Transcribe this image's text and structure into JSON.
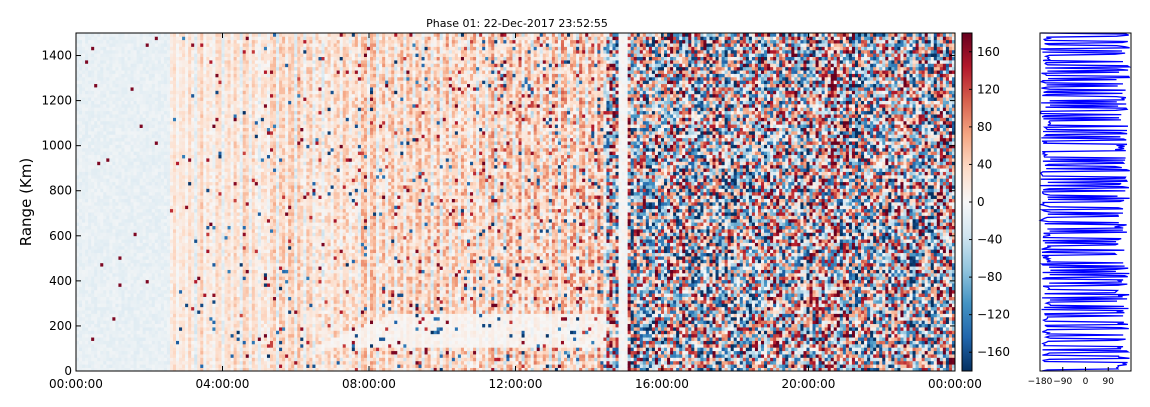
{
  "chart_data": [
    {
      "type": "heatmap",
      "title": "Phase 01: 22-Dec-2017 23:52:55",
      "xlabel": "",
      "ylabel": "Range (Km)",
      "x_tick_labels": [
        "00:00:00",
        "04:00:00",
        "08:00:00",
        "12:00:00",
        "16:00:00",
        "20:00:00",
        "00:00:00"
      ],
      "xlim_hours": [
        0,
        24
      ],
      "y_tick_labels": [
        "0",
        "200",
        "400",
        "600",
        "800",
        "1000",
        "1200",
        "1400"
      ],
      "ylim": [
        0,
        1500
      ],
      "colorbar": {
        "tick_labels": [
          "160",
          "120",
          "80",
          "40",
          "0",
          "−40",
          "−80",
          "−120",
          "−160"
        ],
        "range": [
          -180,
          180
        ],
        "colormap": "RdBu_r",
        "colors": [
          "#053061",
          "#2166ac",
          "#4393c3",
          "#92c5de",
          "#d1e5f0",
          "#f7f7f7",
          "#fddbc7",
          "#f4a582",
          "#d6604d",
          "#b2182b",
          "#67001f"
        ]
      },
      "description_of_field": "phase in degrees versus time of day and range; low-variance near-zero phase before ~14:30, randomised phase after ~14:30"
    },
    {
      "type": "line",
      "title": "",
      "x_tick_labels": [
        "−180",
        "−90",
        "0",
        "90"
      ],
      "xlim": [
        -180,
        180
      ],
      "ylim": [
        0,
        1500
      ],
      "series_color": "#0000ff"
    }
  ]
}
